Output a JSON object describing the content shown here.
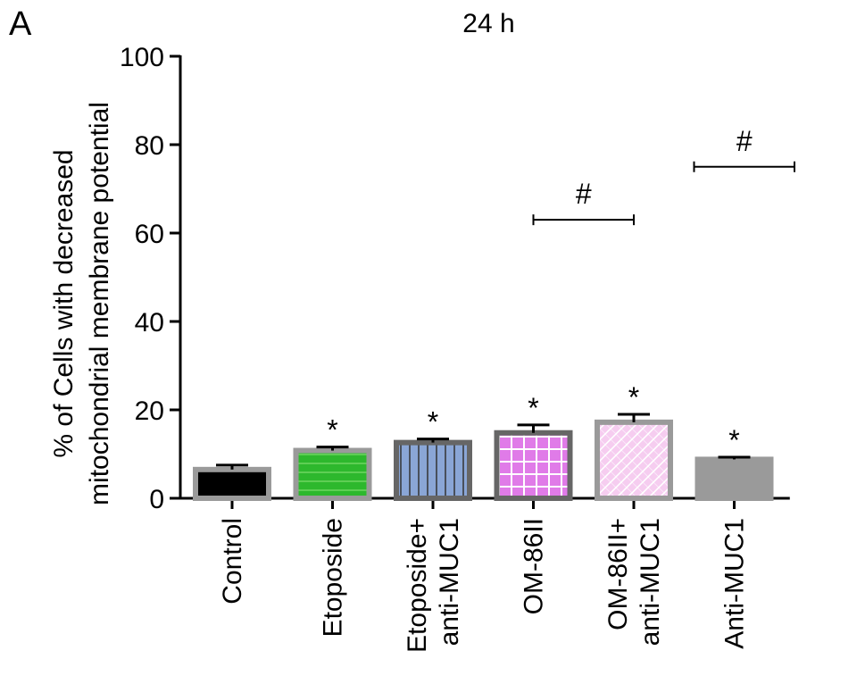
{
  "panel_label": "A",
  "chart_data": {
    "type": "bar",
    "title": "24 h",
    "ylabel": [
      "% of Cells with decreased",
      "mitochondrial membrane potential"
    ],
    "ylim": [
      0,
      100
    ],
    "yticks": [
      0,
      20,
      40,
      60,
      80,
      100
    ],
    "grid": false,
    "categories": [
      [
        "Control"
      ],
      [
        "Etoposide"
      ],
      [
        "Etoposide+",
        "anti-MUC1"
      ],
      [
        "OM-86II"
      ],
      [
        "OM-86II+",
        "anti-MUC1"
      ],
      [
        "Anti-MUC1"
      ]
    ],
    "values": [
      6.5,
      10.8,
      12.6,
      14.8,
      17.2,
      8.8
    ],
    "errors": [
      1.0,
      0.8,
      0.8,
      1.8,
      1.8,
      0.5
    ],
    "markers": [
      "",
      "*",
      "*",
      "*",
      "*",
      "*"
    ],
    "bar_styles": [
      {
        "fill": "#000000",
        "edge": "#9a9a9a",
        "pattern": "solid"
      },
      {
        "fill": "#2db82d",
        "edge": "#9a9a9a",
        "pattern": "horizontal"
      },
      {
        "fill": "#8aa6d6",
        "edge": "#666666",
        "pattern": "vertical"
      },
      {
        "fill": "#e07be8",
        "edge": "#666666",
        "pattern": "grid"
      },
      {
        "fill": "#f6cdf0",
        "edge": "#9a9a9a",
        "pattern": "diagonal"
      },
      {
        "fill": "#9a9a9a",
        "edge": "#9a9a9a",
        "pattern": "solid"
      }
    ],
    "comparisons": [
      {
        "from": 3,
        "to": 4,
        "y": 63,
        "label": "#"
      },
      {
        "from": 4.6,
        "to": 5.6,
        "y": 75,
        "label": "#"
      }
    ]
  }
}
